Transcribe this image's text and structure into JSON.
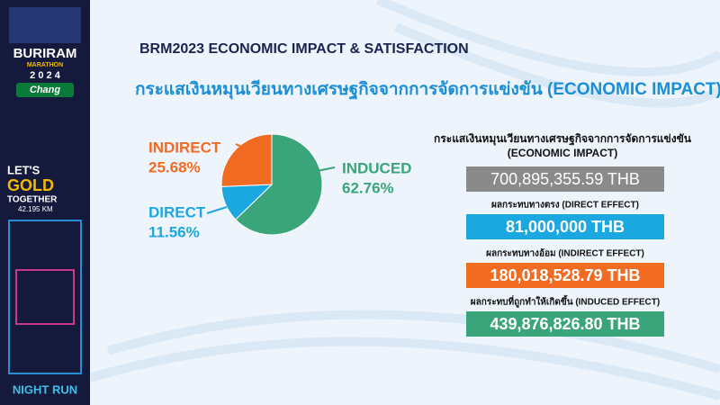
{
  "sidebar": {
    "brand": "BURIRAM",
    "event": "MARATHON",
    "year": "2 0 2 4",
    "sponsor": "Chang",
    "slogan": [
      "LET'S",
      "GOLD",
      "TOGETHER"
    ],
    "distance": "42.195 KM",
    "footer": "NIGHT RUN"
  },
  "header": {
    "title": "BRM2023 ECONOMIC IMPACT & SATISFACTION",
    "subtitle": "กระแสเงินหมุนเวียนทางเศรษฐกิจจากการจัดการแข่งขัน (ECONOMIC IMPACT)"
  },
  "chart_data": {
    "type": "pie",
    "categories": [
      "INDUCED",
      "DIRECT",
      "INDIRECT"
    ],
    "values": [
      62.76,
      11.56,
      25.68
    ],
    "value_labels": [
      "62.76%",
      "11.56%",
      "25.68%"
    ],
    "colors": [
      "#3aa57a",
      "#1ba8e0",
      "#f26b22"
    ]
  },
  "summary": {
    "heading": [
      "กระแสเงินหมุนเวียนทางเศรษฐกิจจากการจัดการแข่งขัน",
      "(ECONOMIC IMPACT)"
    ],
    "total": "700,895,355.59  THB",
    "items": [
      {
        "label": "ผลกระทบทางตรง (DIRECT EFFECT)",
        "amount": "81,000,000  THB"
      },
      {
        "label": "ผลกระทบทางอ้อม (INDIRECT EFFECT)",
        "amount": "180,018,528.79  THB"
      },
      {
        "label": "ผลกระทบที่ถูกทำให้เกิดขึ้น (INDUCED EFFECT)",
        "amount": "439,876,826.80 THB"
      }
    ]
  }
}
